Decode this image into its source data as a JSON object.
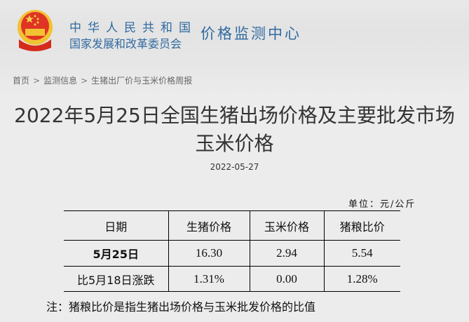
{
  "header": {
    "org_line1": "中华人民共和国",
    "org_line2": "国家发展和改革委员会",
    "center_name": "价格监测中心",
    "emblem_icon": "national-emblem-icon",
    "accent_color": "#2f6aa0"
  },
  "breadcrumb": {
    "items": [
      "首页",
      "监测信息",
      "生猪出厂价与玉米价格周报"
    ],
    "separator": ">"
  },
  "article": {
    "title": "2022年5月25日全国生猪出场价格及主要批发市场玉米价格",
    "date": "2022-05-27",
    "unit": "单位：元/公斤"
  },
  "table": {
    "headers": [
      "日期",
      "生猪价格",
      "玉米价格",
      "猪粮比价"
    ],
    "rows": [
      [
        "5月25日",
        "16.30",
        "2.94",
        "5.54"
      ],
      [
        "比5月18日涨跌",
        "1.31%",
        "0.00",
        "1.28%"
      ]
    ]
  },
  "note": "注：猪粮比价是指生猪出场价格与玉米批发价格的比值"
}
